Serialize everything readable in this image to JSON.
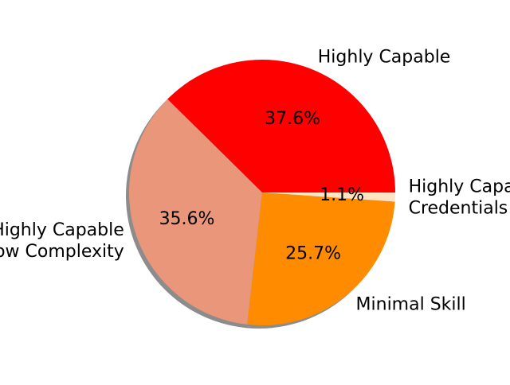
{
  "chart_data": {
    "type": "pie",
    "slices": [
      {
        "label": "Highly Capable",
        "value": 37.6,
        "pct_label": "37.6%",
        "color": "#ff0000",
        "label_lines": [
          "Highly Capable"
        ]
      },
      {
        "label": "Highly Capable\nLow Complexity",
        "value": 35.6,
        "pct_label": "35.6%",
        "color": "#e9967a",
        "label_lines": [
          "Highly Capable",
          "Low Complexity"
        ]
      },
      {
        "label": "Minimal Skill",
        "value": 25.7,
        "pct_label": "25.7%",
        "color": "#ff8c00",
        "label_lines": [
          "Minimal Skill"
        ]
      },
      {
        "label": "Highly Capable\nCredentials",
        "value": 1.1,
        "pct_label": "1.1%",
        "color": "#ffe4c4",
        "label_lines": [
          "Highly Capable",
          "Credentials"
        ]
      }
    ],
    "start_angle_deg": 0,
    "direction": "counterclockwise",
    "shadow": true
  }
}
